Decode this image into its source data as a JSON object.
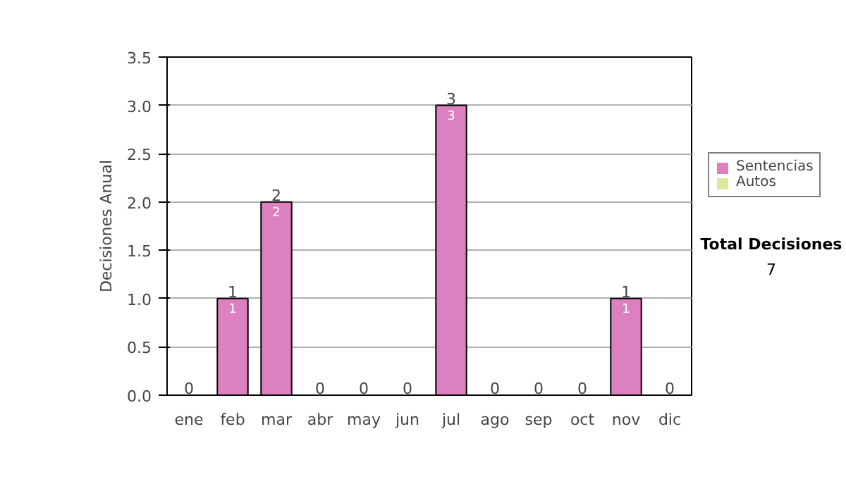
{
  "chart_data": {
    "type": "bar",
    "stacked": true,
    "ylabel": "Decisiones Anual",
    "categories": [
      "ene",
      "feb",
      "mar",
      "abr",
      "may",
      "jun",
      "jul",
      "ago",
      "sep",
      "oct",
      "nov",
      "dic"
    ],
    "series": [
      {
        "name": "Sentencias",
        "color": "#dd80c0",
        "values": [
          0,
          1,
          2,
          0,
          0,
          0,
          3,
          0,
          0,
          0,
          1,
          0
        ],
        "value_labels": [
          null,
          "1",
          "2",
          null,
          null,
          null,
          "3",
          null,
          null,
          null,
          "1",
          null
        ]
      },
      {
        "name": "Autos",
        "color": "#d8eaa0",
        "values": [
          0,
          0,
          0,
          0,
          0,
          0,
          0,
          0,
          0,
          0,
          0,
          0
        ]
      }
    ],
    "totals": [
      "0",
      "1",
      "2",
      "0",
      "0",
      "0",
      "3",
      "0",
      "0",
      "0",
      "1",
      "0"
    ],
    "ylim": [
      0,
      3.5
    ],
    "yticks": [
      {
        "value": 0,
        "label": "0.0"
      },
      {
        "value": 0.5,
        "label": "0.5"
      },
      {
        "value": 1,
        "label": "1.0"
      },
      {
        "value": 1.5,
        "label": "1.5"
      },
      {
        "value": 2,
        "label": "2.0"
      },
      {
        "value": 2.5,
        "label": "2.5"
      },
      {
        "value": 3,
        "label": "3.0"
      },
      {
        "value": 3.5,
        "label": "3.5"
      }
    ],
    "grid": "y",
    "legend": "right",
    "annotations": [
      "Total Decisiones",
      "7"
    ]
  }
}
